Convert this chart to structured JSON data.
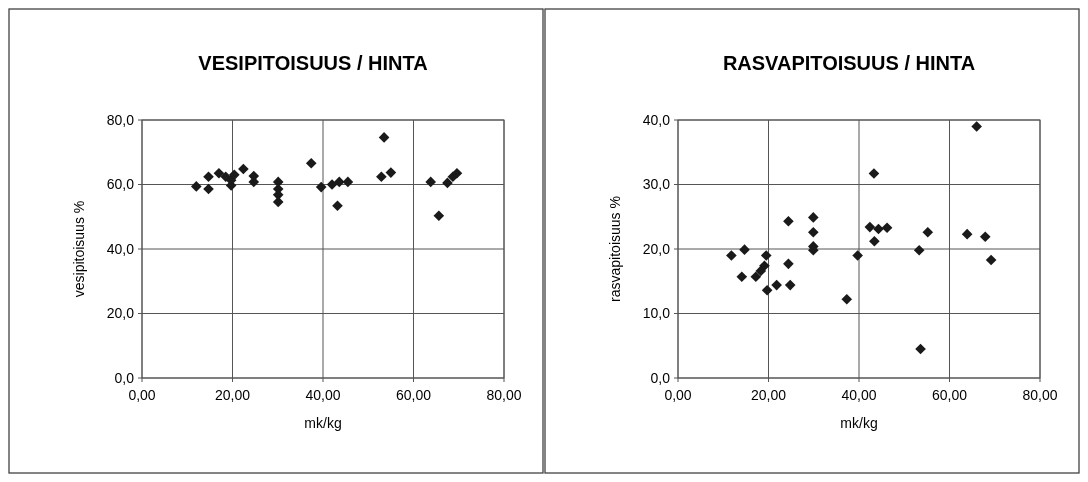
{
  "chart_data": [
    {
      "type": "scatter",
      "title": "VESIPITOISUUS / HINTA",
      "xlabel": "mk/kg",
      "ylabel": "vesipitoisuus %",
      "grid": true,
      "marker": "diamond",
      "xlim": [
        0,
        80
      ],
      "xticks": [
        {
          "value": 0,
          "label": "0,00"
        },
        {
          "value": 20,
          "label": "20,00"
        },
        {
          "value": 40,
          "label": "40,00"
        },
        {
          "value": 60,
          "label": "60,00"
        },
        {
          "value": 80,
          "label": "80,00"
        }
      ],
      "ylim": [
        0,
        80
      ],
      "yticks": [
        {
          "value": 0,
          "label": "0,0"
        },
        {
          "value": 20,
          "label": "20,0"
        },
        {
          "value": 40,
          "label": "40,0"
        },
        {
          "value": 60,
          "label": "60,0"
        },
        {
          "value": 80,
          "label": "80,0"
        }
      ],
      "series": [
        {
          "color": "#1a1a1a",
          "x": [
            12,
            14.7,
            14.7,
            17,
            18.5,
            19.7,
            19.7,
            20.4,
            22.4,
            24.7,
            24.7,
            30.1,
            30.1,
            30.1,
            30.1,
            37.4,
            39.6,
            42,
            43.6,
            43.2,
            45.5,
            52.9,
            53.5,
            55,
            63.8,
            65.6,
            67.5,
            68.7,
            69.6
          ],
          "values": [
            59.4,
            58.6,
            62.4,
            63.5,
            62.4,
            59.7,
            61.3,
            63,
            64.8,
            60.8,
            62.6,
            60.8,
            58.6,
            56.8,
            54.6,
            66.6,
            59.2,
            60,
            60.8,
            53.4,
            60.8,
            62.4,
            74.6,
            63.7,
            60.8,
            50.3,
            60.5,
            62.4,
            63.5
          ]
        }
      ]
    },
    {
      "type": "scatter",
      "title": "RASVAPITOISUUS / HINTA",
      "xlabel": "mk/kg",
      "ylabel": "rasvapitoisuus %",
      "grid": true,
      "marker": "diamond",
      "xlim": [
        0,
        80
      ],
      "xticks": [
        {
          "value": 0,
          "label": "0,00"
        },
        {
          "value": 20,
          "label": "20,00"
        },
        {
          "value": 40,
          "label": "40,00"
        },
        {
          "value": 60,
          "label": "60,00"
        },
        {
          "value": 80,
          "label": "80,00"
        }
      ],
      "ylim": [
        0,
        40
      ],
      "yticks": [
        {
          "value": 0,
          "label": "0,0"
        },
        {
          "value": 10,
          "label": "10,0"
        },
        {
          "value": 20,
          "label": "20,0"
        },
        {
          "value": 30,
          "label": "30,0"
        },
        {
          "value": 40,
          "label": "40,0"
        }
      ],
      "series": [
        {
          "color": "#1a1a1a",
          "x": [
            66,
            43.3,
            24.4,
            29.9,
            29.9,
            29.9,
            29.9,
            42.4,
            44.3,
            46.2,
            43.4,
            55.2,
            63.9,
            67.9,
            69.2,
            53.3,
            39.7,
            37.3,
            53.6,
            11.8,
            14.7,
            14.1,
            17.2,
            19.5,
            19.1,
            18.3,
            24.4,
            19.7,
            21.8,
            24.8
          ],
          "values": [
            39,
            31.7,
            24.3,
            24.9,
            22.6,
            20.4,
            19.8,
            23.4,
            23.1,
            23.3,
            21.2,
            22.6,
            22.3,
            21.9,
            18.3,
            19.8,
            19,
            12.2,
            4.5,
            19,
            19.9,
            15.7,
            15.7,
            19,
            17.4,
            16.6,
            17.7,
            13.6,
            14.4,
            14.4
          ]
        }
      ]
    }
  ]
}
